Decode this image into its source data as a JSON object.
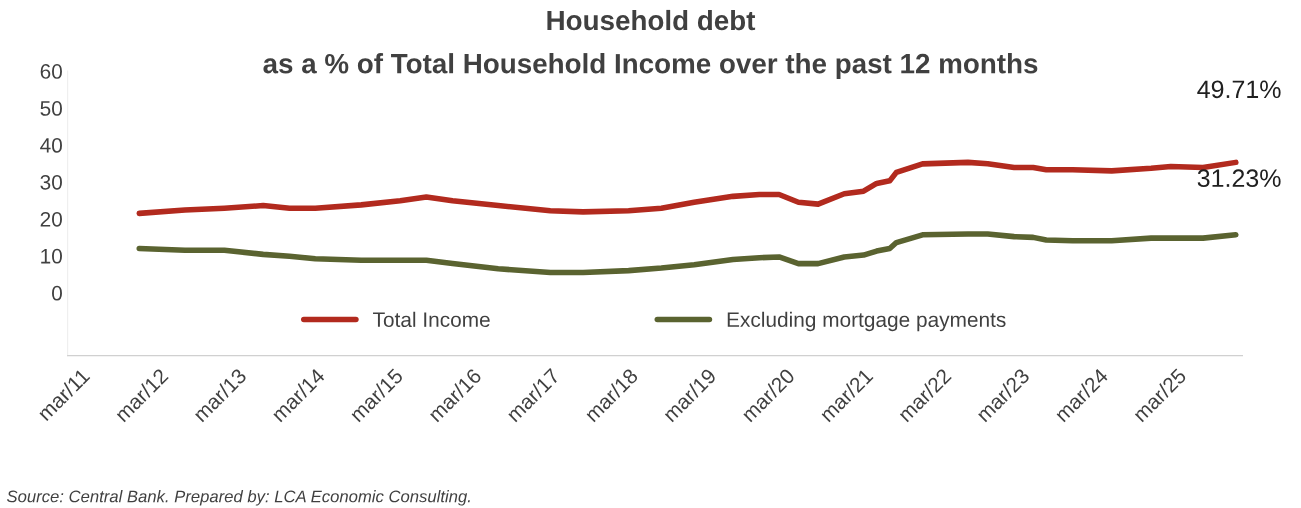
{
  "chart_data": {
    "type": "line",
    "title": "Household debt",
    "subtitle": "as a % of Total Household Income over the past 12 months",
    "x": [
      "2011-12",
      "2012-07",
      "2013-01",
      "2013-07",
      "2013-11",
      "2014-03",
      "2014-10",
      "2015-04",
      "2015-08",
      "2015-12",
      "2016-07",
      "2017-03",
      "2017-08",
      "2018-03",
      "2018-08",
      "2019-01",
      "2019-07",
      "2019-11",
      "2020-02",
      "2020-05",
      "2020-08",
      "2020-12",
      "2021-03",
      "2021-05",
      "2021-07",
      "2021-08",
      "2021-12",
      "2022-07",
      "2022-10",
      "2023-02",
      "2023-05",
      "2023-07",
      "2023-11",
      "2024-05",
      "2024-11",
      "2025-02",
      "2025-07",
      "2025-12"
    ],
    "series": [
      {
        "name": "Total Income",
        "color": "#b22a1e",
        "values": [
          21.5,
          22.4,
          22.9,
          23.6,
          22.9,
          22.9,
          23.8,
          24.9,
          25.9,
          24.9,
          23.6,
          22.2,
          21.9,
          22.2,
          22.9,
          24.5,
          26.1,
          26.6,
          26.6,
          24.5,
          24.0,
          26.8,
          27.5,
          29.6,
          30.3,
          32.6,
          34.9,
          35.3,
          34.9,
          33.9,
          33.9,
          33.3,
          33.3,
          33.0,
          33.7,
          34.2,
          33.9,
          35.3
        ]
      },
      {
        "name": "Excluding mortgage payments",
        "color": "#5a6330",
        "values": [
          12.0,
          11.5,
          11.5,
          10.4,
          9.9,
          9.2,
          8.8,
          8.8,
          8.8,
          7.9,
          6.5,
          5.5,
          5.5,
          6.0,
          6.7,
          7.6,
          9.0,
          9.5,
          9.7,
          7.9,
          7.9,
          9.7,
          10.2,
          11.3,
          12.0,
          13.6,
          15.7,
          15.9,
          15.9,
          15.2,
          15.0,
          14.3,
          14.1,
          14.1,
          14.8,
          14.8,
          14.8,
          15.7
        ]
      }
    ],
    "xlim": [
      "2011-01",
      "2026-01"
    ],
    "xticks": [
      {
        "value": "2011-03",
        "label": "mar/11"
      },
      {
        "value": "2012-03",
        "label": "mar/12"
      },
      {
        "value": "2013-03",
        "label": "mar/13"
      },
      {
        "value": "2014-03",
        "label": "mar/14"
      },
      {
        "value": "2015-03",
        "label": "mar/15"
      },
      {
        "value": "2016-03",
        "label": "mar/16"
      },
      {
        "value": "2017-03",
        "label": "mar/17"
      },
      {
        "value": "2018-03",
        "label": "mar/18"
      },
      {
        "value": "2019-03",
        "label": "mar/19"
      },
      {
        "value": "2020-03",
        "label": "mar/20"
      },
      {
        "value": "2021-03",
        "label": "mar/21"
      },
      {
        "value": "2022-03",
        "label": "mar/22"
      },
      {
        "value": "2023-03",
        "label": "mar/23"
      },
      {
        "value": "2024-03",
        "label": "mar/24"
      },
      {
        "value": "2025-03",
        "label": "mar/25"
      }
    ],
    "ylim": [
      -17,
      60
    ],
    "yticks": [
      0,
      10,
      20,
      30,
      40,
      50,
      60
    ],
    "annotations": [
      "49.71%",
      "31.23%",
      "Source: Central Bank. Prepared by: LCA Economic Consulting."
    ],
    "legend": "bottom",
    "grid": false,
    "marker": "none",
    "line_style": "solid"
  }
}
